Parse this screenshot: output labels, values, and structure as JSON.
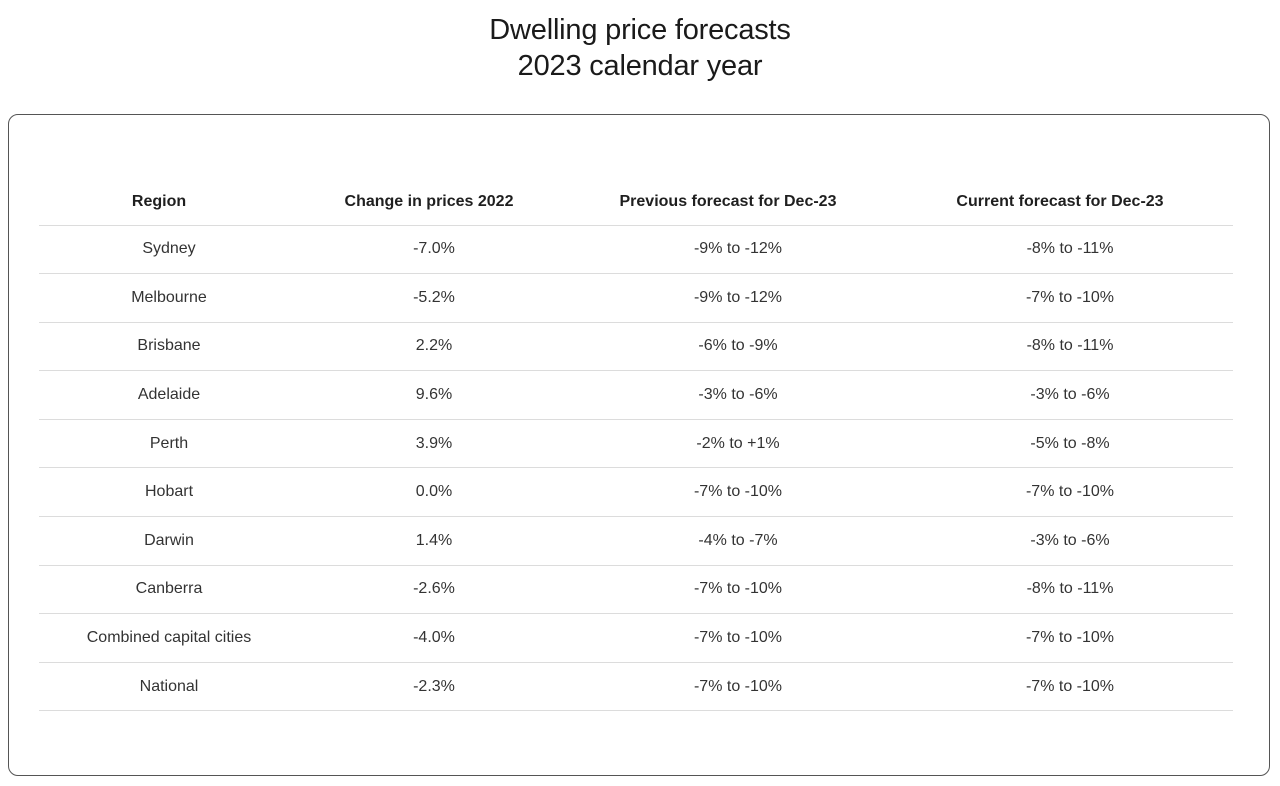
{
  "title": {
    "line1": "Dwelling price forecasts",
    "line2": "2023 calendar year"
  },
  "table": {
    "headers": [
      "Region",
      "Change in prices 2022",
      "Previous forecast for Dec-23",
      "Current forecast for Dec-23"
    ],
    "rows": [
      [
        "Sydney",
        "-7.0%",
        "-9% to -12%",
        "-8% to -11%"
      ],
      [
        "Melbourne",
        "-5.2%",
        "-9% to -12%",
        "-7% to -10%"
      ],
      [
        "Brisbane",
        "2.2%",
        "-6% to -9%",
        "-8% to -11%"
      ],
      [
        "Adelaide",
        "9.6%",
        "-3% to -6%",
        "-3% to -6%"
      ],
      [
        "Perth",
        "3.9%",
        "-2% to +1%",
        "-5% to -8%"
      ],
      [
        "Hobart",
        "0.0%",
        "-7% to -10%",
        "-7% to -10%"
      ],
      [
        "Darwin",
        "1.4%",
        "-4% to -7%",
        "-3% to -6%"
      ],
      [
        "Canberra",
        "-2.6%",
        "-7% to -10%",
        "-8% to -11%"
      ],
      [
        "Combined capital cities",
        "-4.0%",
        "-7% to -10%",
        "-7% to -10%"
      ],
      [
        "National",
        "-2.3%",
        "-7% to -10%",
        "-7% to -10%"
      ]
    ]
  },
  "colors": {
    "text": "#222222",
    "border": "#555555",
    "row_divider": "#dcdcdc",
    "background": "#ffffff"
  }
}
